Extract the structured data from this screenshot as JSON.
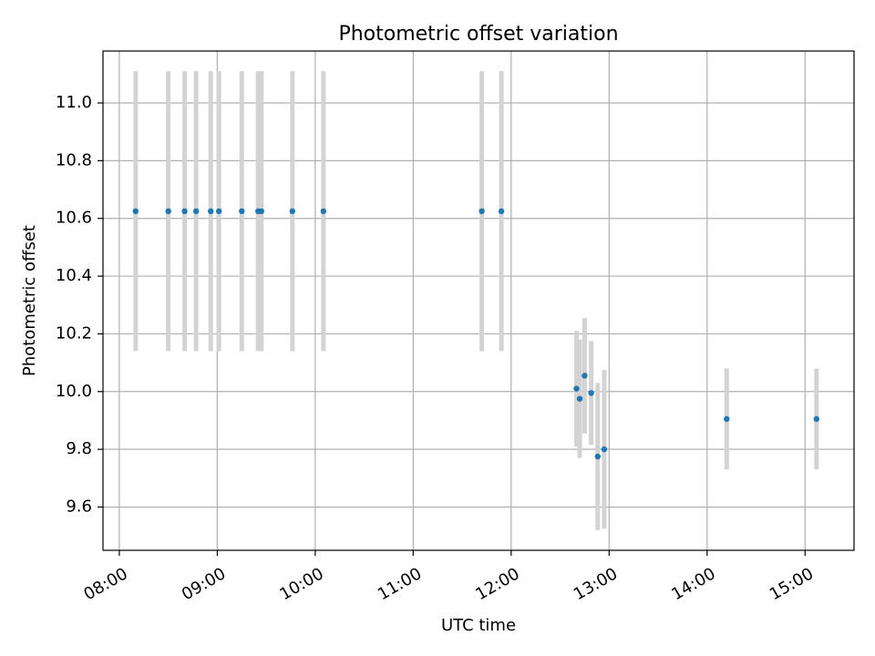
{
  "chart_data": {
    "type": "scatter",
    "title": "Photometric offset variation",
    "xlabel": "UTC time",
    "ylabel": "Photometric offset",
    "xlim": [
      "07:50",
      "15:30"
    ],
    "ylim": [
      9.45,
      11.18
    ],
    "x_ticks": [
      "08:00",
      "09:00",
      "10:00",
      "11:00",
      "12:00",
      "13:00",
      "14:00",
      "15:00"
    ],
    "y_ticks": [
      "9.6",
      "9.8",
      "10.0",
      "10.2",
      "10.4",
      "10.6",
      "10.8",
      "11.0"
    ],
    "grid": true,
    "colors": {
      "point": "#1f77b4",
      "errorbar": "#d3d3d3",
      "grid": "#b0b0b0"
    },
    "points": [
      {
        "x": "08:10",
        "y": 10.625,
        "err": 0.485
      },
      {
        "x": "08:30",
        "y": 10.625,
        "err": 0.485
      },
      {
        "x": "08:40",
        "y": 10.625,
        "err": 0.485
      },
      {
        "x": "08:47",
        "y": 10.625,
        "err": 0.485
      },
      {
        "x": "08:56",
        "y": 10.625,
        "err": 0.485
      },
      {
        "x": "09:01",
        "y": 10.625,
        "err": 0.485
      },
      {
        "x": "09:15",
        "y": 10.625,
        "err": 0.485
      },
      {
        "x": "09:25",
        "y": 10.625,
        "err": 0.485
      },
      {
        "x": "09:27",
        "y": 10.625,
        "err": 0.485
      },
      {
        "x": "09:46",
        "y": 10.625,
        "err": 0.485
      },
      {
        "x": "10:05",
        "y": 10.625,
        "err": 0.485
      },
      {
        "x": "11:42",
        "y": 10.625,
        "err": 0.485
      },
      {
        "x": "11:54",
        "y": 10.625,
        "err": 0.485
      },
      {
        "x": "12:40",
        "y": 10.01,
        "err": 0.2
      },
      {
        "x": "12:42",
        "y": 9.975,
        "err": 0.205
      },
      {
        "x": "12:45",
        "y": 10.055,
        "err": 0.2
      },
      {
        "x": "12:49",
        "y": 9.995,
        "err": 0.18
      },
      {
        "x": "12:53",
        "y": 9.775,
        "err": 0.255
      },
      {
        "x": "12:57",
        "y": 9.8,
        "err": 0.275
      },
      {
        "x": "14:12",
        "y": 9.905,
        "err": 0.175
      },
      {
        "x": "15:07",
        "y": 9.905,
        "err": 0.175
      }
    ]
  }
}
